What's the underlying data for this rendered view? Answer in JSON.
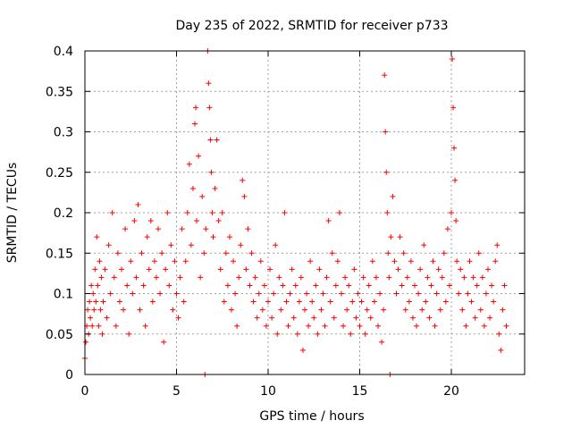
{
  "chart_data": {
    "type": "scatter",
    "title": "Day 235 of 2022, SRMTID for receiver p733",
    "xlabel": "GPS time / hours",
    "ylabel": "SRMTID / TECUs",
    "xlim": [
      0,
      24
    ],
    "ylim": [
      0,
      0.4
    ],
    "x_ticks": [
      0,
      5,
      10,
      15,
      20
    ],
    "x_tick_labels": [
      "0",
      "5",
      "10",
      "15",
      "20"
    ],
    "y_ticks": [
      0,
      0.05,
      0.1,
      0.15,
      0.2,
      0.25,
      0.3,
      0.35,
      0.4
    ],
    "y_tick_labels": [
      "0",
      "0.05",
      "0.1",
      "0.15",
      "0.2",
      "0.25",
      "0.3",
      "0.35",
      "0.4"
    ],
    "grid": true,
    "marker": "+",
    "series": [
      {
        "name": "SRMTID",
        "color": "#ff0000",
        "points": [
          [
            0.0,
            0.02
          ],
          [
            0.05,
            0.04
          ],
          [
            0.1,
            0.06
          ],
          [
            0.15,
            0.08
          ],
          [
            0.2,
            0.05
          ],
          [
            0.25,
            0.09
          ],
          [
            0.3,
            0.07
          ],
          [
            0.35,
            0.11
          ],
          [
            0.4,
            0.06
          ],
          [
            0.45,
            0.1
          ],
          [
            0.5,
            0.08
          ],
          [
            0.55,
            0.13
          ],
          [
            0.6,
            0.09
          ],
          [
            0.65,
            0.17
          ],
          [
            0.7,
            0.11
          ],
          [
            0.75,
            0.06
          ],
          [
            0.8,
            0.14
          ],
          [
            0.85,
            0.08
          ],
          [
            0.9,
            0.12
          ],
          [
            0.95,
            0.05
          ],
          [
            1.0,
            0.09
          ],
          [
            1.1,
            0.13
          ],
          [
            1.2,
            0.07
          ],
          [
            1.3,
            0.16
          ],
          [
            1.4,
            0.1
          ],
          [
            1.5,
            0.2
          ],
          [
            1.6,
            0.12
          ],
          [
            1.7,
            0.06
          ],
          [
            1.8,
            0.15
          ],
          [
            1.9,
            0.09
          ],
          [
            2.0,
            0.13
          ],
          [
            2.1,
            0.08
          ],
          [
            2.2,
            0.18
          ],
          [
            2.3,
            0.11
          ],
          [
            2.4,
            0.05
          ],
          [
            2.5,
            0.14
          ],
          [
            2.6,
            0.1
          ],
          [
            2.7,
            0.19
          ],
          [
            2.8,
            0.12
          ],
          [
            2.9,
            0.21
          ],
          [
            3.0,
            0.08
          ],
          [
            3.1,
            0.15
          ],
          [
            3.2,
            0.11
          ],
          [
            3.3,
            0.06
          ],
          [
            3.4,
            0.17
          ],
          [
            3.5,
            0.13
          ],
          [
            3.6,
            0.19
          ],
          [
            3.7,
            0.09
          ],
          [
            3.8,
            0.14
          ],
          [
            3.9,
            0.12
          ],
          [
            4.0,
            0.18
          ],
          [
            4.1,
            0.1
          ],
          [
            4.2,
            0.15
          ],
          [
            4.3,
            0.04
          ],
          [
            4.4,
            0.13
          ],
          [
            4.5,
            0.2
          ],
          [
            4.6,
            0.11
          ],
          [
            4.7,
            0.16
          ],
          [
            4.8,
            0.08
          ],
          [
            4.9,
            0.14
          ],
          [
            5.0,
            0.1
          ],
          [
            5.1,
            0.07
          ],
          [
            5.2,
            0.12
          ],
          [
            5.3,
            0.18
          ],
          [
            5.4,
            0.09
          ],
          [
            5.5,
            0.14
          ],
          [
            5.6,
            0.2
          ],
          [
            5.7,
            0.26
          ],
          [
            5.8,
            0.16
          ],
          [
            5.9,
            0.23
          ],
          [
            6.0,
            0.31
          ],
          [
            6.05,
            0.33
          ],
          [
            6.1,
            0.19
          ],
          [
            6.2,
            0.27
          ],
          [
            6.3,
            0.12
          ],
          [
            6.4,
            0.22
          ],
          [
            6.5,
            0.15
          ],
          [
            6.55,
            0.0
          ],
          [
            6.6,
            0.18
          ],
          [
            6.7,
            0.4
          ],
          [
            6.75,
            0.36
          ],
          [
            6.8,
            0.33
          ],
          [
            6.85,
            0.29
          ],
          [
            6.9,
            0.25
          ],
          [
            6.95,
            0.2
          ],
          [
            7.0,
            0.17
          ],
          [
            7.1,
            0.23
          ],
          [
            7.2,
            0.29
          ],
          [
            7.3,
            0.19
          ],
          [
            7.4,
            0.13
          ],
          [
            7.5,
            0.2
          ],
          [
            7.6,
            0.09
          ],
          [
            7.7,
            0.15
          ],
          [
            7.8,
            0.11
          ],
          [
            7.9,
            0.17
          ],
          [
            8.0,
            0.08
          ],
          [
            8.1,
            0.14
          ],
          [
            8.2,
            0.1
          ],
          [
            8.3,
            0.06
          ],
          [
            8.4,
            0.12
          ],
          [
            8.5,
            0.16
          ],
          [
            8.6,
            0.24
          ],
          [
            8.7,
            0.22
          ],
          [
            8.8,
            0.13
          ],
          [
            8.9,
            0.18
          ],
          [
            9.0,
            0.11
          ],
          [
            9.1,
            0.15
          ],
          [
            9.2,
            0.09
          ],
          [
            9.3,
            0.12
          ],
          [
            9.4,
            0.07
          ],
          [
            9.5,
            0.1
          ],
          [
            9.6,
            0.14
          ],
          [
            9.7,
            0.08
          ],
          [
            9.8,
            0.11
          ],
          [
            9.9,
            0.06
          ],
          [
            10.0,
            0.09
          ],
          [
            10.1,
            0.13
          ],
          [
            10.2,
            0.07
          ],
          [
            10.3,
            0.1
          ],
          [
            10.4,
            0.16
          ],
          [
            10.5,
            0.05
          ],
          [
            10.6,
            0.12
          ],
          [
            10.7,
            0.08
          ],
          [
            10.8,
            0.11
          ],
          [
            10.9,
            0.2
          ],
          [
            11.0,
            0.09
          ],
          [
            11.1,
            0.06
          ],
          [
            11.2,
            0.1
          ],
          [
            11.3,
            0.13
          ],
          [
            11.4,
            0.07
          ],
          [
            11.5,
            0.11
          ],
          [
            11.6,
            0.05
          ],
          [
            11.7,
            0.09
          ],
          [
            11.8,
            0.12
          ],
          [
            11.9,
            0.03
          ],
          [
            12.0,
            0.08
          ],
          [
            12.1,
            0.1
          ],
          [
            12.2,
            0.06
          ],
          [
            12.3,
            0.14
          ],
          [
            12.4,
            0.09
          ],
          [
            12.5,
            0.07
          ],
          [
            12.6,
            0.11
          ],
          [
            12.7,
            0.05
          ],
          [
            12.8,
            0.13
          ],
          [
            12.9,
            0.08
          ],
          [
            13.0,
            0.1
          ],
          [
            13.1,
            0.06
          ],
          [
            13.2,
            0.12
          ],
          [
            13.3,
            0.19
          ],
          [
            13.4,
            0.09
          ],
          [
            13.5,
            0.15
          ],
          [
            13.6,
            0.07
          ],
          [
            13.7,
            0.11
          ],
          [
            13.8,
            0.14
          ],
          [
            13.9,
            0.2
          ],
          [
            14.0,
            0.1
          ],
          [
            14.1,
            0.06
          ],
          [
            14.2,
            0.12
          ],
          [
            14.3,
            0.08
          ],
          [
            14.4,
            0.11
          ],
          [
            14.5,
            0.05
          ],
          [
            14.6,
            0.09
          ],
          [
            14.7,
            0.13
          ],
          [
            14.8,
            0.07
          ],
          [
            14.9,
            0.1
          ],
          [
            15.0,
            0.06
          ],
          [
            15.1,
            0.09
          ],
          [
            15.2,
            0.12
          ],
          [
            15.3,
            0.05
          ],
          [
            15.4,
            0.08
          ],
          [
            15.5,
            0.11
          ],
          [
            15.6,
            0.07
          ],
          [
            15.7,
            0.14
          ],
          [
            15.8,
            0.09
          ],
          [
            15.9,
            0.12
          ],
          [
            16.0,
            0.06
          ],
          [
            16.1,
            0.1
          ],
          [
            16.2,
            0.04
          ],
          [
            16.3,
            0.08
          ],
          [
            16.35,
            0.37
          ],
          [
            16.4,
            0.3
          ],
          [
            16.45,
            0.25
          ],
          [
            16.5,
            0.2
          ],
          [
            16.55,
            0.15
          ],
          [
            16.6,
            0.12
          ],
          [
            16.65,
            0.0
          ],
          [
            16.7,
            0.17
          ],
          [
            16.8,
            0.22
          ],
          [
            16.9,
            0.14
          ],
          [
            17.0,
            0.1
          ],
          [
            17.1,
            0.13
          ],
          [
            17.2,
            0.17
          ],
          [
            17.3,
            0.11
          ],
          [
            17.4,
            0.15
          ],
          [
            17.5,
            0.08
          ],
          [
            17.6,
            0.12
          ],
          [
            17.7,
            0.09
          ],
          [
            17.8,
            0.14
          ],
          [
            17.9,
            0.07
          ],
          [
            18.0,
            0.11
          ],
          [
            18.1,
            0.06
          ],
          [
            18.2,
            0.1
          ],
          [
            18.3,
            0.13
          ],
          [
            18.4,
            0.08
          ],
          [
            18.5,
            0.16
          ],
          [
            18.6,
            0.09
          ],
          [
            18.7,
            0.12
          ],
          [
            18.8,
            0.07
          ],
          [
            18.9,
            0.11
          ],
          [
            19.0,
            0.14
          ],
          [
            19.1,
            0.06
          ],
          [
            19.2,
            0.1
          ],
          [
            19.3,
            0.13
          ],
          [
            19.4,
            0.08
          ],
          [
            19.5,
            0.12
          ],
          [
            19.6,
            0.15
          ],
          [
            19.7,
            0.09
          ],
          [
            19.8,
            0.18
          ],
          [
            19.9,
            0.11
          ],
          [
            20.0,
            0.2
          ],
          [
            20.05,
            0.39
          ],
          [
            20.1,
            0.33
          ],
          [
            20.15,
            0.28
          ],
          [
            20.2,
            0.24
          ],
          [
            20.25,
            0.19
          ],
          [
            20.3,
            0.14
          ],
          [
            20.4,
            0.1
          ],
          [
            20.5,
            0.13
          ],
          [
            20.6,
            0.08
          ],
          [
            20.7,
            0.12
          ],
          [
            20.8,
            0.06
          ],
          [
            20.9,
            0.1
          ],
          [
            21.0,
            0.14
          ],
          [
            21.1,
            0.09
          ],
          [
            21.2,
            0.12
          ],
          [
            21.3,
            0.07
          ],
          [
            21.4,
            0.11
          ],
          [
            21.5,
            0.15
          ],
          [
            21.6,
            0.08
          ],
          [
            21.7,
            0.12
          ],
          [
            21.8,
            0.06
          ],
          [
            21.9,
            0.1
          ],
          [
            22.0,
            0.13
          ],
          [
            22.1,
            0.07
          ],
          [
            22.2,
            0.11
          ],
          [
            22.3,
            0.09
          ],
          [
            22.4,
            0.14
          ],
          [
            22.5,
            0.16
          ],
          [
            22.6,
            0.05
          ],
          [
            22.7,
            0.03
          ],
          [
            22.8,
            0.08
          ],
          [
            22.9,
            0.11
          ],
          [
            23.0,
            0.06
          ]
        ]
      }
    ]
  }
}
